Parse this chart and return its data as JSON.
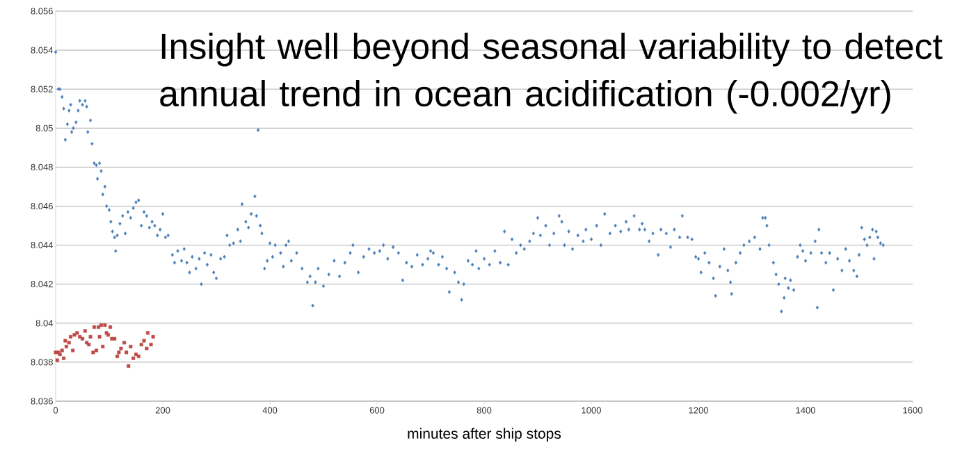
{
  "chart_data": {
    "type": "scatter",
    "xlabel": "minutes after ship stops",
    "annotations": [
      "Insight well beyond seasonal variability to detect annual trend in ocean acidification  (-0.002/yr)"
    ],
    "xlim": [
      0,
      1600
    ],
    "xticks": [
      0,
      200,
      400,
      600,
      800,
      1000,
      1200,
      1400,
      1600
    ],
    "ylim": [
      8.036,
      8.056
    ],
    "yticks": [
      8.036,
      8.038,
      8.04,
      8.042,
      8.044,
      8.046,
      8.048,
      8.05,
      8.052,
      8.054,
      8.056
    ],
    "grid": "y",
    "series": [
      {
        "color": "#4a7ebb",
        "marker": "diamond",
        "x": [
          0,
          5,
          8,
          12,
          15,
          18,
          22,
          25,
          28,
          30,
          33,
          38,
          42,
          45,
          50,
          55,
          58,
          60,
          65,
          68,
          72,
          76,
          78,
          82,
          85,
          88,
          92,
          95,
          100,
          103,
          106,
          110,
          112,
          115,
          120,
          125,
          130,
          135,
          140,
          145,
          150,
          155,
          160,
          165,
          170,
          175,
          180,
          185,
          190,
          195,
          200,
          205,
          210,
          218,
          222,
          228,
          235,
          240,
          245,
          250,
          255,
          262,
          268,
          272,
          278,
          283,
          290,
          295,
          300,
          308,
          315,
          320,
          325,
          332,
          340,
          345,
          348,
          355,
          360,
          365,
          372,
          375,
          378,
          382,
          385,
          390,
          395,
          400,
          405,
          410,
          420,
          425,
          430,
          435,
          440,
          450,
          460,
          470,
          475,
          480,
          485,
          490,
          500,
          510,
          520,
          530,
          540,
          550,
          555,
          565,
          575,
          585,
          595,
          605,
          612,
          620,
          630,
          640,
          648,
          655,
          665,
          675,
          685,
          695,
          700,
          705,
          715,
          722,
          730,
          735,
          745,
          752,
          758,
          762,
          770,
          778,
          785,
          790,
          800,
          810,
          820,
          830,
          838,
          845,
          852,
          860,
          868,
          875,
          885,
          892,
          900,
          905,
          915,
          922,
          930,
          940,
          945,
          950,
          958,
          965,
          975,
          985,
          990,
          1000,
          1010,
          1018,
          1025,
          1035,
          1045,
          1055,
          1065,
          1070,
          1080,
          1090,
          1095,
          1100,
          1108,
          1115,
          1125,
          1130,
          1140,
          1148,
          1155,
          1165,
          1170,
          1180,
          1188,
          1195,
          1200,
          1205,
          1212,
          1220,
          1228,
          1232,
          1240,
          1248,
          1255,
          1260,
          1262,
          1270,
          1278,
          1285,
          1295,
          1305,
          1315,
          1320,
          1325,
          1328,
          1332,
          1340,
          1345,
          1350,
          1355,
          1360,
          1362,
          1368,
          1372,
          1378,
          1385,
          1390,
          1395,
          1400,
          1410,
          1418,
          1422,
          1425,
          1430,
          1438,
          1445,
          1452,
          1460,
          1468,
          1475,
          1482,
          1490,
          1496,
          1500,
          1505,
          1510,
          1515,
          1520,
          1525,
          1528,
          1532,
          1535,
          1540,
          1545
        ],
        "values": [
          8.0539,
          8.052,
          8.052,
          8.0516,
          8.051,
          8.0494,
          8.0502,
          8.0509,
          8.0512,
          8.0498,
          8.05,
          8.0503,
          8.0509,
          8.0514,
          8.0512,
          8.0514,
          8.0511,
          8.0498,
          8.0504,
          8.0492,
          8.0482,
          8.0481,
          8.0474,
          8.0482,
          8.0478,
          8.0466,
          8.047,
          8.046,
          8.0458,
          8.0452,
          8.0447,
          8.0444,
          8.0437,
          8.0445,
          8.0451,
          8.0455,
          8.0446,
          8.0457,
          8.0454,
          8.0459,
          8.0462,
          8.0463,
          8.045,
          8.0457,
          8.0455,
          8.0449,
          8.0452,
          8.045,
          8.0445,
          8.0448,
          8.0456,
          8.0444,
          8.0445,
          8.0435,
          8.0431,
          8.0437,
          8.0432,
          8.0438,
          8.0431,
          8.0426,
          8.0434,
          8.0428,
          8.0433,
          8.042,
          8.0436,
          8.043,
          8.0435,
          8.0426,
          8.0423,
          8.0433,
          8.0434,
          8.0445,
          8.044,
          8.0441,
          8.0448,
          8.0442,
          8.0461,
          8.0452,
          8.0449,
          8.0456,
          8.0465,
          8.0455,
          8.0499,
          8.045,
          8.0446,
          8.0428,
          8.0432,
          8.0441,
          8.0434,
          8.044,
          8.0436,
          8.0429,
          8.044,
          8.0442,
          8.0432,
          8.0436,
          8.0428,
          8.0421,
          8.0424,
          8.0409,
          8.0421,
          8.0428,
          8.0419,
          8.0425,
          8.0432,
          8.0424,
          8.0431,
          8.0436,
          8.044,
          8.0426,
          8.0434,
          8.0438,
          8.0436,
          8.0437,
          8.044,
          8.0433,
          8.0439,
          8.0436,
          8.0422,
          8.0431,
          8.0429,
          8.0435,
          8.043,
          8.0433,
          8.0437,
          8.0436,
          8.043,
          8.0434,
          8.0428,
          8.0416,
          8.0426,
          8.0421,
          8.0412,
          8.042,
          8.0432,
          8.043,
          8.0437,
          8.0428,
          8.0433,
          8.043,
          8.0437,
          8.0431,
          8.0447,
          8.043,
          8.0443,
          8.0436,
          8.044,
          8.0438,
          8.0442,
          8.0446,
          8.0454,
          8.0445,
          8.045,
          8.044,
          8.0446,
          8.0455,
          8.0452,
          8.044,
          8.0447,
          8.0438,
          8.0445,
          8.0442,
          8.0448,
          8.0443,
          8.045,
          8.044,
          8.0456,
          8.0446,
          8.045,
          8.0447,
          8.0452,
          8.0448,
          8.0455,
          8.0448,
          8.0451,
          8.0448,
          8.0442,
          8.0446,
          8.0435,
          8.0448,
          8.0446,
          8.0439,
          8.0448,
          8.0444,
          8.0455,
          8.0444,
          8.0443,
          8.0434,
          8.0433,
          8.0426,
          8.0436,
          8.0431,
          8.0423,
          8.0414,
          8.0429,
          8.0438,
          8.0427,
          8.0421,
          8.0415,
          8.0431,
          8.0436,
          8.044,
          8.0442,
          8.0444,
          8.0438,
          8.0454,
          8.0454,
          8.045,
          8.044,
          8.0431,
          8.0425,
          8.042,
          8.0406,
          8.0413,
          8.0423,
          8.0418,
          8.0422,
          8.0417,
          8.0434,
          8.044,
          8.0437,
          8.0432,
          8.0436,
          8.0442,
          8.0408,
          8.0448,
          8.0436,
          8.0431,
          8.0436,
          8.0417,
          8.0433,
          8.0427,
          8.0438,
          8.0432,
          8.0427,
          8.0424,
          8.0435,
          8.0449,
          8.0443,
          8.044,
          8.0444,
          8.0448,
          8.0433,
          8.0447,
          8.0444,
          8.0441,
          8.044
        ]
      },
      {
        "color": "#be4b48",
        "marker": "square",
        "x": [
          0,
          3,
          5,
          8,
          12,
          15,
          18,
          20,
          25,
          28,
          32,
          35,
          40,
          45,
          50,
          55,
          58,
          62,
          65,
          70,
          72,
          76,
          80,
          82,
          85,
          88,
          92,
          95,
          98,
          102,
          105,
          110,
          115,
          118,
          122,
          128,
          132,
          136,
          140,
          145,
          150,
          155,
          160,
          165,
          170,
          172,
          178,
          182
        ],
        "values": [
          8.0385,
          8.0381,
          8.0385,
          8.0384,
          8.0386,
          8.0382,
          8.0391,
          8.0388,
          8.039,
          8.0393,
          8.0386,
          8.0394,
          8.0395,
          8.0393,
          8.0392,
          8.0396,
          8.039,
          8.0389,
          8.0393,
          8.0385,
          8.0398,
          8.0386,
          8.0398,
          8.0393,
          8.0399,
          8.0388,
          8.0399,
          8.0395,
          8.0394,
          8.0398,
          8.0392,
          8.0392,
          8.0383,
          8.0385,
          8.0387,
          8.039,
          8.0385,
          8.0378,
          8.0388,
          8.0382,
          8.0384,
          8.0383,
          8.0389,
          8.0391,
          8.0387,
          8.0395,
          8.0389,
          8.0393
        ]
      }
    ]
  }
}
